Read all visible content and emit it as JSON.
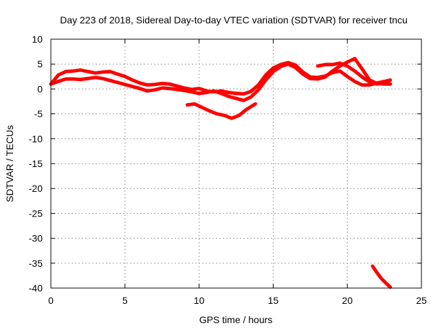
{
  "chart_data": {
    "type": "line",
    "title": "Day 223 of 2018, Sidereal Day-to-day VTEC variation (SDTVAR) for receiver tncu",
    "xlabel": "GPS time / hours",
    "ylabel": "SDTVAR / TECUs",
    "xlim": [
      0,
      25
    ],
    "ylim": [
      -40,
      10
    ],
    "xticks": [
      0,
      5,
      10,
      15,
      20,
      25
    ],
    "yticks": [
      -40,
      -35,
      -30,
      -25,
      -20,
      -15,
      -10,
      -5,
      0,
      5,
      10
    ],
    "grid": true,
    "series_color": "#ff0000",
    "series": [
      {
        "name": "trace-1",
        "x": [
          0.0,
          0.5,
          1.0,
          1.5,
          2.0,
          2.5,
          3.0,
          3.5,
          4.0,
          4.5,
          5.0,
          5.5,
          6.0,
          6.5,
          7.0,
          7.5,
          8.0,
          8.5,
          9.0,
          9.5,
          10.0,
          10.5,
          11.0,
          11.5,
          12.0,
          12.5,
          13.0,
          13.5,
          14.0,
          14.5,
          15.0,
          15.5,
          16.0,
          16.5,
          17.0,
          17.5,
          18.0,
          18.5,
          19.0,
          19.5,
          20.0,
          20.5,
          21.0,
          21.5,
          22.0,
          22.5,
          22.9
        ],
        "y": [
          1.0,
          2.8,
          3.5,
          3.6,
          3.8,
          3.5,
          3.2,
          3.4,
          3.5,
          3.0,
          2.5,
          1.8,
          1.2,
          0.8,
          0.9,
          1.1,
          1.0,
          0.6,
          0.2,
          -0.1,
          0.1,
          -0.4,
          -0.6,
          -0.4,
          -0.7,
          -0.9,
          -1.0,
          -0.5,
          0.8,
          2.8,
          4.2,
          4.9,
          5.3,
          4.8,
          3.4,
          2.4,
          2.3,
          2.6,
          3.3,
          3.6,
          2.5,
          1.5,
          0.8,
          0.8,
          1.2,
          1.5,
          1.8
        ]
      },
      {
        "name": "trace-2",
        "x": [
          0.0,
          0.5,
          1.0,
          1.5,
          2.0,
          2.5,
          3.0,
          3.5,
          4.0,
          4.5,
          5.0,
          5.5,
          6.0,
          6.5,
          7.0,
          7.5,
          8.0,
          8.5,
          9.0,
          9.5,
          10.0,
          10.5,
          11.0,
          11.5,
          12.0,
          12.5,
          13.0,
          13.5,
          14.0,
          14.5,
          15.0,
          15.5,
          16.0,
          16.5,
          17.0,
          17.5,
          18.0,
          18.5,
          19.0,
          19.5,
          20.0,
          20.5,
          21.0,
          21.5,
          22.0,
          22.5,
          22.9
        ],
        "y": [
          1.0,
          1.5,
          2.0,
          2.0,
          1.9,
          2.1,
          2.3,
          2.1,
          1.7,
          1.3,
          0.9,
          0.5,
          0.1,
          -0.4,
          -0.2,
          0.2,
          0.1,
          -0.1,
          -0.3,
          -0.6,
          -0.9,
          -0.7,
          -0.4,
          -0.9,
          -1.5,
          -1.9,
          -2.3,
          -1.6,
          -0.2,
          1.8,
          3.5,
          4.5,
          5.0,
          4.3,
          3.0,
          2.1,
          2.0,
          2.4,
          3.6,
          4.6,
          5.4,
          6.1,
          4.0,
          1.8,
          1.1,
          1.0,
          1.0
        ]
      },
      {
        "name": "trace-3",
        "x": [
          9.2,
          9.7,
          10.2,
          10.7,
          11.2,
          11.7,
          12.2,
          12.7,
          13.2,
          13.8
        ],
        "y": [
          -3.2,
          -3.0,
          -3.7,
          -4.4,
          -5.0,
          -5.3,
          -5.9,
          -5.3,
          -4.1,
          -3.0
        ]
      },
      {
        "name": "trace-4",
        "x": [
          18.0,
          18.5,
          19.0,
          19.5,
          20.0,
          20.5,
          21.0,
          21.5,
          22.0,
          22.5,
          22.9
        ],
        "y": [
          4.6,
          4.9,
          4.9,
          5.2,
          4.6,
          3.6,
          2.4,
          1.4,
          1.0,
          1.2,
          1.0
        ]
      },
      {
        "name": "trace-5",
        "x": [
          21.7,
          22.0,
          22.3,
          22.6,
          22.9
        ],
        "y": [
          -35.6,
          -36.9,
          -38.1,
          -39.0,
          -39.8
        ]
      }
    ]
  }
}
